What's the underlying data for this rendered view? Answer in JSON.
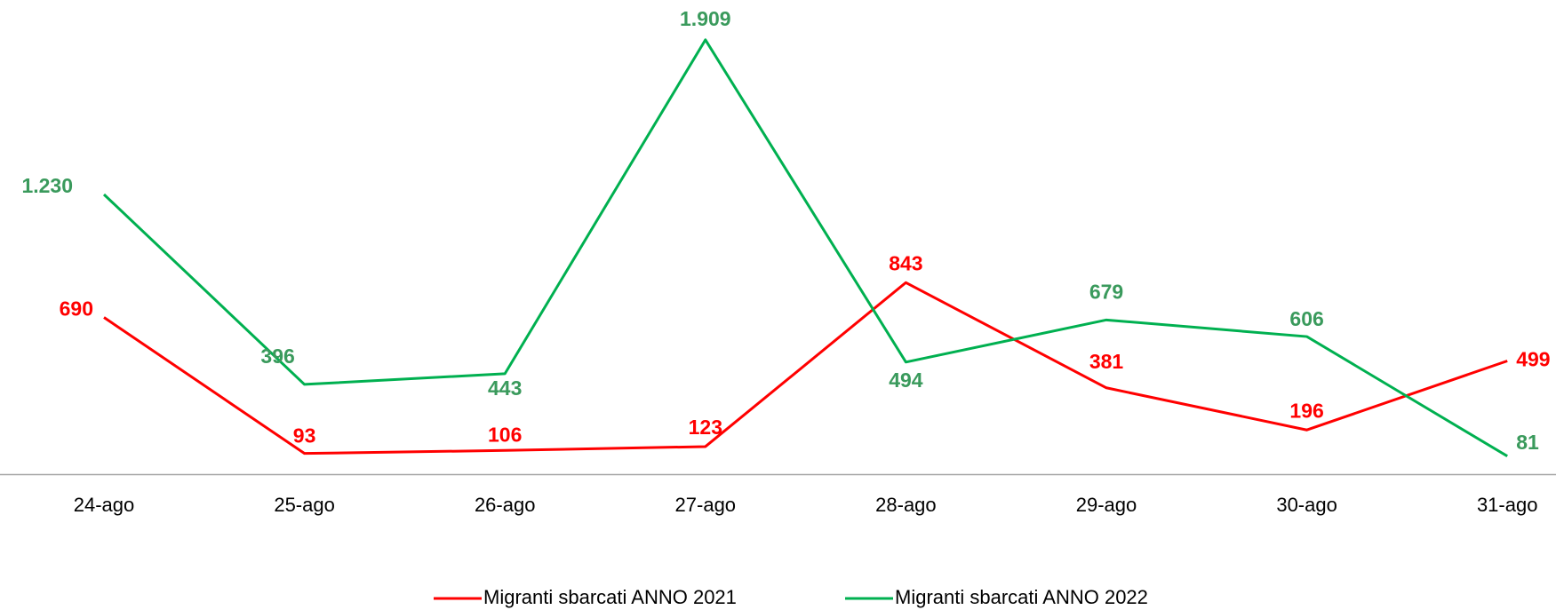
{
  "chart_data": {
    "type": "line",
    "categories": [
      "24-ago",
      "25-ago",
      "26-ago",
      "27-ago",
      "28-ago",
      "29-ago",
      "30-ago",
      "31-ago"
    ],
    "series": [
      {
        "name": "Migranti sbarcati ANNO 2021",
        "color": "#ff0000",
        "label_color": "#ff0000",
        "values": [
          690,
          93,
          106,
          123,
          843,
          381,
          196,
          499
        ]
      },
      {
        "name": "Migranti sbarcati ANNO 2022",
        "color": "#00b050",
        "label_color": "#3a9a5c",
        "values": [
          1230,
          396,
          443,
          1909,
          494,
          679,
          606,
          81
        ],
        "value_labels": [
          "1.230",
          "396",
          "443",
          "1.909",
          "494",
          "679",
          "606",
          "81"
        ]
      }
    ],
    "ylim": [
      0,
      2000
    ],
    "legend": "bottom"
  }
}
